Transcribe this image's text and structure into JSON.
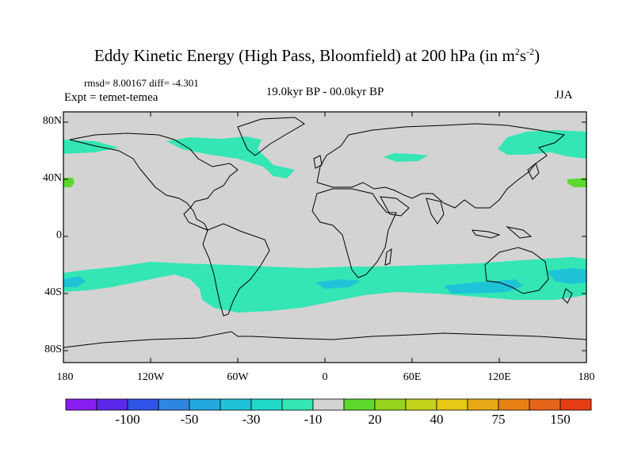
{
  "figure": {
    "title_main": "Eddy Kinetic Energy (High Pass, Bloomfield) at 200 hPa (in m",
    "title_sup1": "2",
    "title_mid": "s",
    "title_sup2": "-2",
    "title_end": ")",
    "stats": "rmsd= 8.00167 diff= -4.301",
    "experiment": "Expt = temet-temea",
    "period": "19.0kyr BP - 00.0kyr BP",
    "season": "JJA"
  },
  "map": {
    "lat_labels": [
      "80N",
      "40N",
      "0",
      "40S",
      "80S"
    ],
    "lon_labels": [
      "180",
      "120W",
      "60W",
      "0",
      "60E",
      "120E",
      "180"
    ],
    "background_color": "#d3d3d3",
    "coastline_color": "#000000"
  },
  "colorbar": {
    "labels": [
      "-100",
      "-50",
      "-30",
      "-10",
      "20",
      "40",
      "75",
      "150"
    ],
    "colors": [
      "#8a1ef0",
      "#5a28e6",
      "#2e55e8",
      "#2f86e0",
      "#23a8e0",
      "#1ec3d8",
      "#20d8c8",
      "#33e6b4",
      "#d3d3d3",
      "#5cd82e",
      "#96d21e",
      "#c3d21a",
      "#e6c814",
      "#e6a814",
      "#e68214",
      "#e6641a",
      "#e63c14"
    ]
  }
}
